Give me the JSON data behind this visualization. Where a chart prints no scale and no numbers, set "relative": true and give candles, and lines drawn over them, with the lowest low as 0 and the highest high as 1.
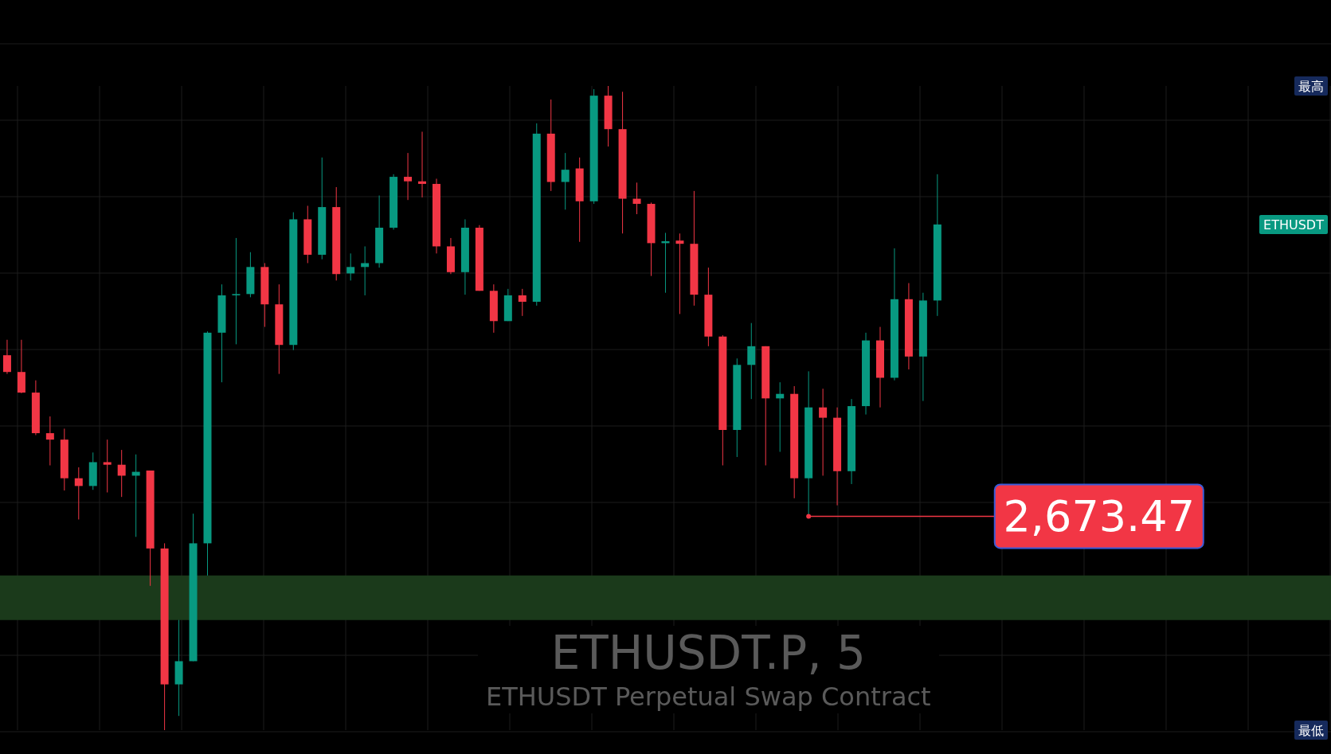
{
  "chart_data": {
    "type": "candlestick",
    "title": "ETHUSDT.P, 5",
    "subtitle": "ETHUSDT Perpetual Swap Contract",
    "relative": true,
    "grid": true,
    "categories": [
      null,
      null,
      null,
      null,
      null,
      null,
      null,
      null,
      null,
      null,
      null,
      null,
      null,
      null,
      null,
      null,
      null,
      null,
      null,
      null,
      null,
      null,
      null,
      null,
      null,
      null,
      null,
      null,
      null,
      null,
      null,
      null,
      null,
      null,
      null,
      null,
      null,
      null,
      null,
      null,
      null,
      null,
      null,
      null,
      null,
      null,
      null,
      null,
      null,
      null,
      null,
      null,
      null,
      null,
      null,
      null,
      null,
      null,
      null,
      null,
      null,
      null,
      null,
      null,
      null,
      null,
      null,
      null,
      null,
      null,
      null,
      null,
      null,
      null,
      null,
      null,
      null,
      null,
      null,
      null,
      null,
      null,
      null,
      null,
      null,
      null,
      null,
      null,
      null,
      null,
      null,
      null,
      null
    ],
    "ohlc": [
      [
        0.582,
        0.606,
        0.553,
        0.556
      ],
      [
        0.556,
        0.606,
        0.523,
        0.524
      ],
      [
        0.524,
        0.543,
        0.458,
        0.461
      ],
      [
        0.461,
        0.487,
        0.411,
        0.451
      ],
      [
        0.451,
        0.468,
        0.372,
        0.391
      ],
      [
        0.391,
        0.408,
        0.327,
        0.379
      ],
      [
        0.379,
        0.431,
        0.373,
        0.416
      ],
      [
        0.416,
        0.451,
        0.369,
        0.412
      ],
      [
        0.412,
        0.435,
        0.362,
        0.395
      ],
      [
        0.395,
        0.428,
        0.3,
        0.401
      ],
      [
        0.403,
        0.403,
        0.224,
        0.282
      ],
      [
        0.282,
        0.29,
        0.0,
        0.071
      ],
      [
        0.071,
        0.171,
        0.022,
        0.107
      ],
      [
        0.107,
        0.336,
        0.107,
        0.29
      ],
      [
        0.29,
        0.619,
        0.24,
        0.617
      ],
      [
        0.617,
        0.692,
        0.54,
        0.675
      ],
      [
        0.675,
        0.764,
        0.599,
        0.677
      ],
      [
        0.677,
        0.742,
        0.672,
        0.719
      ],
      [
        0.719,
        0.725,
        0.626,
        0.661
      ],
      [
        0.661,
        0.692,
        0.553,
        0.598
      ],
      [
        0.598,
        0.804,
        0.59,
        0.793
      ],
      [
        0.793,
        0.814,
        0.725,
        0.738
      ],
      [
        0.738,
        0.889,
        0.731,
        0.812
      ],
      [
        0.812,
        0.843,
        0.698,
        0.708
      ],
      [
        0.709,
        0.74,
        0.698,
        0.719
      ],
      [
        0.719,
        0.751,
        0.675,
        0.725
      ],
      [
        0.725,
        0.83,
        0.718,
        0.78
      ],
      [
        0.78,
        0.863,
        0.777,
        0.859
      ],
      [
        0.859,
        0.896,
        0.823,
        0.852
      ],
      [
        0.852,
        0.929,
        0.827,
        0.848
      ],
      [
        0.848,
        0.856,
        0.74,
        0.751
      ],
      [
        0.751,
        0.764,
        0.708,
        0.711
      ],
      [
        0.711,
        0.793,
        0.676,
        0.78
      ],
      [
        0.78,
        0.784,
        0.682,
        0.682
      ],
      [
        0.682,
        0.692,
        0.617,
        0.635
      ],
      [
        0.635,
        0.685,
        0.635,
        0.675
      ],
      [
        0.675,
        0.685,
        0.643,
        0.665
      ],
      [
        0.665,
        0.942,
        0.659,
        0.926
      ],
      [
        0.926,
        0.979,
        0.837,
        0.851
      ],
      [
        0.851,
        0.896,
        0.808,
        0.87
      ],
      [
        0.872,
        0.889,
        0.758,
        0.821
      ],
      [
        0.821,
        0.995,
        0.817,
        0.985
      ],
      [
        0.985,
        1.0,
        0.906,
        0.933
      ],
      [
        0.933,
        0.991,
        0.771,
        0.825
      ],
      [
        0.825,
        0.85,
        0.801,
        0.817
      ],
      [
        0.817,
        0.819,
        0.705,
        0.756
      ],
      [
        0.756,
        0.772,
        0.679,
        0.759
      ],
      [
        0.76,
        0.771,
        0.646,
        0.755
      ],
      [
        0.755,
        0.837,
        0.659,
        0.676
      ],
      [
        0.676,
        0.718,
        0.596,
        0.611
      ],
      [
        0.611,
        0.613,
        0.411,
        0.466
      ],
      [
        0.466,
        0.577,
        0.424,
        0.567
      ],
      [
        0.567,
        0.632,
        0.514,
        0.596
      ],
      [
        0.596,
        0.596,
        0.411,
        0.515
      ],
      [
        0.515,
        0.54,
        0.432,
        0.522
      ],
      [
        0.522,
        0.534,
        0.36,
        0.391
      ],
      [
        0.391,
        0.557,
        0.332,
        0.501
      ],
      [
        0.501,
        0.53,
        0.395,
        0.485
      ],
      [
        0.485,
        0.501,
        0.349,
        0.402
      ],
      [
        0.402,
        0.514,
        0.382,
        0.503
      ],
      [
        0.503,
        0.617,
        0.49,
        0.605
      ],
      [
        0.605,
        0.626,
        0.501,
        0.547
      ],
      [
        0.547,
        0.748,
        0.543,
        0.669
      ],
      [
        0.669,
        0.694,
        0.56,
        0.58
      ],
      [
        0.58,
        0.679,
        0.511,
        0.667
      ],
      [
        0.667,
        0.863,
        0.643,
        0.785
      ],
      null,
      null,
      null,
      null,
      null,
      null,
      null,
      null,
      null,
      null,
      null,
      null,
      null,
      null,
      null,
      null,
      null,
      null,
      null,
      null,
      null,
      null,
      null,
      null,
      null,
      null,
      null
    ],
    "colors": [
      "#f23645",
      "#f23645",
      "#f23645",
      "#f23645",
      "#f23645",
      "#f23645",
      "#089981",
      "#f23645",
      "#f23645",
      "#089981",
      "#f23645",
      "#f23645",
      "#089981",
      "#089981",
      "#089981",
      "#089981",
      "#089981",
      "#089981",
      "#f23645",
      "#f23645",
      "#089981",
      "#f23645",
      "#089981",
      "#f23645",
      "#089981",
      "#089981",
      "#089981",
      "#089981",
      "#f23645",
      "#f23645",
      "#f23645",
      "#f23645",
      "#089981",
      "#f23645",
      "#f23645",
      "#089981",
      "#f23645",
      "#089981",
      "#f23645",
      "#089981",
      "#f23645",
      "#089981",
      "#f23645",
      "#f23645",
      "#f23645",
      "#f23645",
      "#089981",
      "#f23645",
      "#f23645",
      "#f23645",
      "#f23645",
      "#089981",
      "#089981",
      "#f23645",
      "#089981",
      "#f23645",
      "#089981",
      "#f23645",
      "#f23645",
      "#089981",
      "#089981",
      "#f23645",
      "#089981",
      "#f23645",
      "#089981",
      "#089981",
      null,
      null,
      null,
      null,
      null,
      null,
      null,
      null,
      null,
      null,
      null,
      null,
      null,
      null,
      null,
      null,
      null,
      null,
      null,
      null,
      null,
      null,
      null,
      null,
      null,
      null,
      null
    ],
    "bands": [
      {
        "axis": "y",
        "from": 0.171,
        "to": 0.24,
        "color": "#1b3a1b"
      }
    ],
    "annotations": [
      "2,673.47",
      {
        "text": "最高",
        "y": 1.0
      },
      "ETHUSDT",
      {
        "text": "最低",
        "y": 0.0
      }
    ]
  }
}
